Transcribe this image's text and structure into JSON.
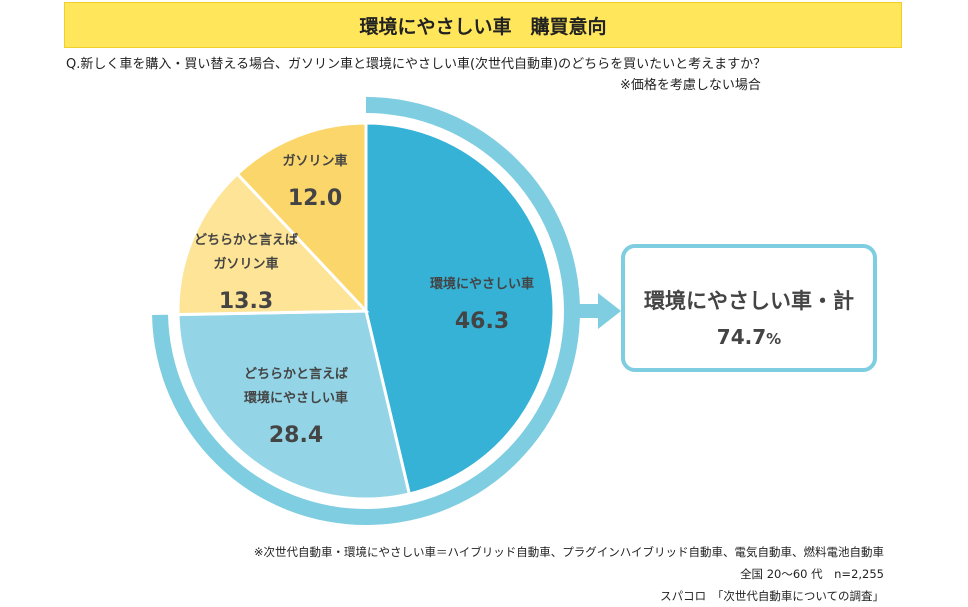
{
  "header": {
    "title": "環境にやさしい車　購買意向",
    "question": "Q.新しく車を購入・買い替える場合、ガソリン車と環境にやさしい車(次世代自動車)のどちらを買いたいと考えますか？",
    "condition": "※価格を考慮しない場合"
  },
  "chart_data": {
    "type": "pie",
    "slices": [
      {
        "label_lines": [
          "環境にやさしい車"
        ],
        "value": 46.3,
        "value_text": "46.3",
        "color": "#35b2d6"
      },
      {
        "label_lines": [
          "どちらかと言えば",
          "環境にやさしい車"
        ],
        "value": 28.4,
        "value_text": "28.4",
        "color": "#93d5e7"
      },
      {
        "label_lines": [
          "どちらかと言えば",
          "ガソリン車"
        ],
        "value": 13.3,
        "value_text": "13.3",
        "color": "#fde496"
      },
      {
        "label_lines": [
          "ガソリン車"
        ],
        "value": 12.0,
        "value_text": "12.0",
        "color": "#fbd66a"
      }
    ],
    "ring_color": "#7fcde0"
  },
  "total": {
    "label": "環境にやさしい車・計",
    "value": "74.7",
    "unit": "%"
  },
  "notes": {
    "definition": "※次世代自動車・環境にやさしい車＝ハイブリッド自動車、プラグインハイブリッド自動車、電気自動車、燃料電池自動車",
    "sample": "全国 20～60 代　n=2,255",
    "source": "スパコロ　「次世代自動車についての調査」"
  }
}
